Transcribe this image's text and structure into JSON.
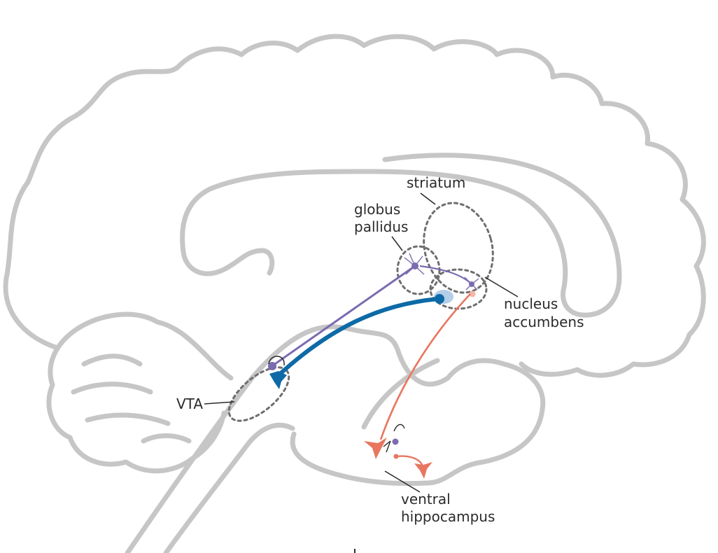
{
  "labels": {
    "striatum": "striatum",
    "globus_line1": "globus",
    "globus_line2": "pallidus",
    "nucleus_line1": "nucleus",
    "nucleus_line2": "accumbens",
    "vta": "VTA",
    "ventral_line1": "ventral",
    "ventral_line2": "hippocampus"
  },
  "colors": {
    "outline": "#c6c6c6",
    "region": "#6e6e6e",
    "dopamine": "#0d6aa6",
    "gaba": "#7b6bb0",
    "hippocampal": "#e8765f",
    "text": "#2b2b2b"
  }
}
